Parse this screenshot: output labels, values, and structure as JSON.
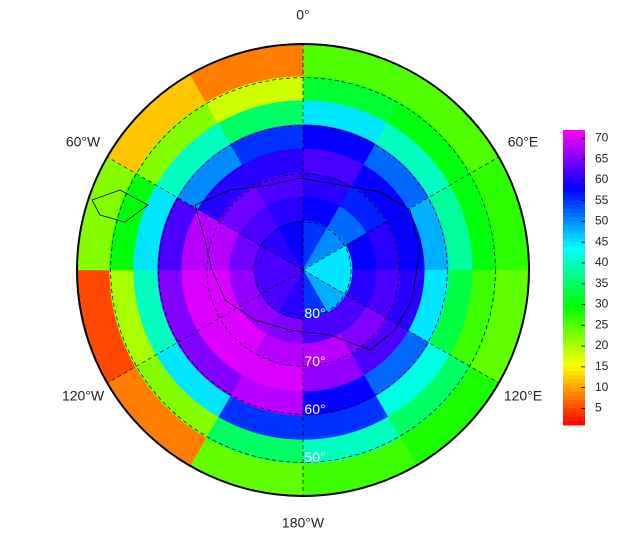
{
  "map": {
    "center_lat": -90,
    "lat_lim": [
      43,
      90
    ],
    "lon_labels": [
      {
        "value": 0,
        "label": "0°"
      },
      {
        "value": 60,
        "label": "60°E"
      },
      {
        "value": 120,
        "label": "120°E"
      },
      {
        "value": 180,
        "label": "180°W"
      },
      {
        "value": 240,
        "label": "120°W"
      },
      {
        "value": 300,
        "label": "60°W"
      }
    ],
    "lat_labels": [
      {
        "value": 80,
        "label": "80°"
      },
      {
        "value": 70,
        "label": "70°"
      },
      {
        "value": 60,
        "label": "60°"
      },
      {
        "value": 50,
        "label": "50°"
      }
    ],
    "grid": {
      "lon_bins": [
        0,
        30,
        60,
        90,
        120,
        150,
        180,
        210,
        240,
        270,
        300,
        330,
        360
      ],
      "lat_bins": [
        43,
        50,
        55,
        60,
        65,
        70,
        75,
        80,
        90
      ],
      "values": [
        [
          25,
          32,
          45,
          58,
          62,
          60,
          58,
          55
        ],
        [
          25,
          30,
          40,
          52,
          58,
          56,
          52,
          50
        ],
        [
          27,
          30,
          38,
          48,
          58,
          60,
          58,
          45
        ],
        [
          24,
          26,
          33,
          45,
          60,
          62,
          60,
          45
        ],
        [
          28,
          35,
          42,
          52,
          62,
          65,
          62,
          48
        ],
        [
          26,
          40,
          55,
          58,
          66,
          68,
          62,
          55
        ],
        [
          24,
          35,
          55,
          68,
          70,
          68,
          65,
          60
        ],
        [
          8,
          22,
          45,
          65,
          70,
          70,
          66,
          62
        ],
        [
          5,
          20,
          40,
          65,
          70,
          70,
          66,
          62
        ],
        [
          22,
          30,
          45,
          62,
          68,
          68,
          64,
          62
        ],
        [
          12,
          22,
          40,
          50,
          60,
          64,
          62,
          60
        ],
        [
          8,
          18,
          35,
          55,
          60,
          62,
          60,
          58
        ]
      ]
    },
    "colorbar": {
      "lim": [
        1,
        72
      ],
      "ticks": [
        5,
        10,
        15,
        20,
        25,
        30,
        35,
        40,
        45,
        50,
        55,
        60,
        65,
        70
      ],
      "colors": [
        "#ff0000",
        "#ffff00",
        "#00ff00",
        "#00ffff",
        "#0000ff",
        "#ff00ff"
      ]
    }
  }
}
